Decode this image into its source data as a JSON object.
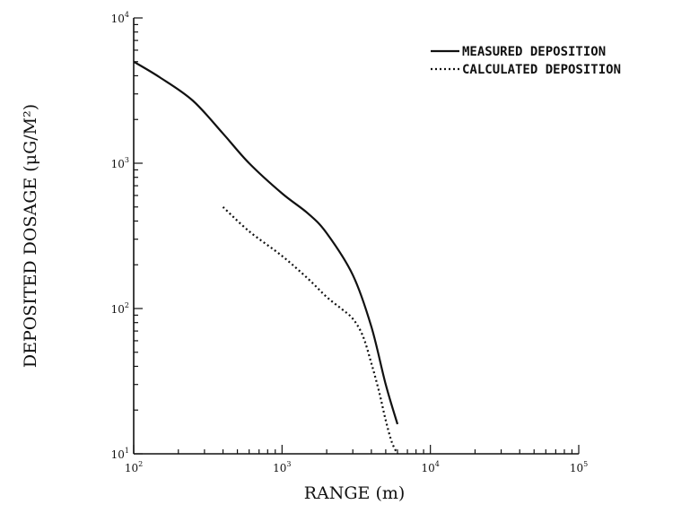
{
  "chart_data": {
    "type": "line",
    "xlabel": "RANGE (m)",
    "ylabel": "DEPOSITED DOSAGE (μG/M²)",
    "xscale": "log",
    "yscale": "log",
    "xlim": [
      100,
      100000
    ],
    "ylim": [
      10,
      10000
    ],
    "grid": false,
    "legend_position": "top-right",
    "x_ticks": [
      {
        "base": "10",
        "exp": "2"
      },
      {
        "base": "10",
        "exp": "3"
      },
      {
        "base": "10",
        "exp": "4"
      },
      {
        "base": "10",
        "exp": "5"
      }
    ],
    "y_ticks": [
      {
        "base": "10",
        "exp": "1"
      },
      {
        "base": "10",
        "exp": "2"
      },
      {
        "base": "10",
        "exp": "3"
      },
      {
        "base": "10",
        "exp": "4"
      }
    ],
    "series": [
      {
        "name": "MEASURED DEPOSITION",
        "style": "solid",
        "points": [
          [
            100,
            5000
          ],
          [
            150,
            3900
          ],
          [
            250,
            2700
          ],
          [
            400,
            1600
          ],
          [
            600,
            1000
          ],
          [
            1000,
            620
          ],
          [
            1500,
            450
          ],
          [
            2000,
            330
          ],
          [
            3000,
            170
          ],
          [
            4000,
            75
          ],
          [
            5000,
            30
          ],
          [
            6000,
            16
          ]
        ]
      },
      {
        "name": "CALCULATED DEPOSITION",
        "style": "dotted",
        "points": [
          [
            400,
            500
          ],
          [
            600,
            340
          ],
          [
            1000,
            230
          ],
          [
            1500,
            160
          ],
          [
            2000,
            120
          ],
          [
            2500,
            100
          ],
          [
            3000,
            85
          ],
          [
            3500,
            65
          ],
          [
            4000,
            42
          ],
          [
            4500,
            27
          ],
          [
            5000,
            17
          ],
          [
            5500,
            12
          ],
          [
            6000,
            10
          ]
        ]
      }
    ]
  }
}
